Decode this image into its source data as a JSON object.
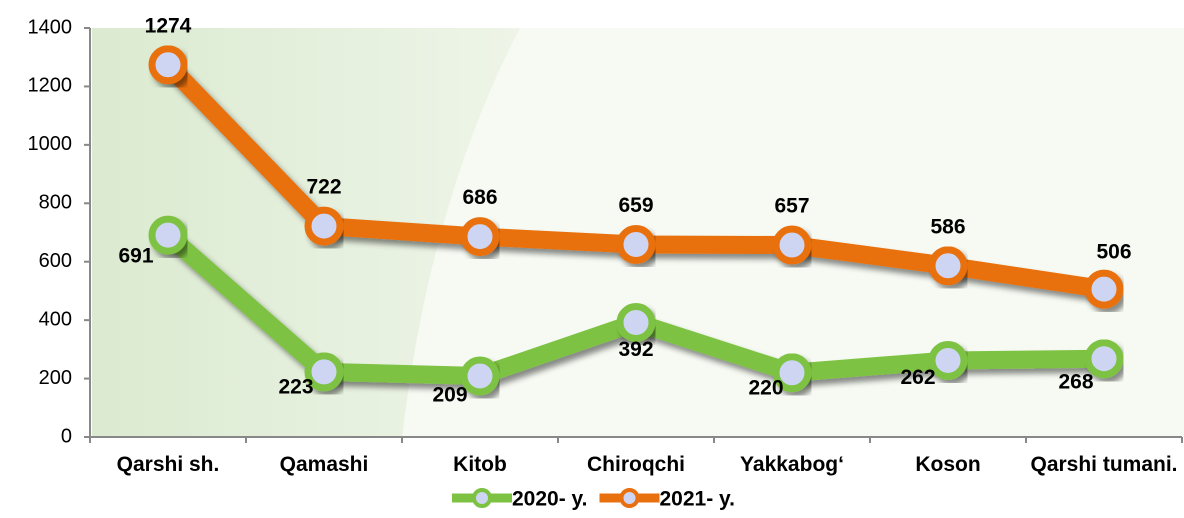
{
  "chart_data": {
    "type": "line",
    "categories": [
      "Qarshi sh.",
      "Qamashi",
      "Kitob",
      "Chiroqchi",
      "Yakkabog‘",
      "Koson",
      "Qarshi tumani."
    ],
    "series": [
      {
        "name": "2020- y.",
        "color": "#7dc242",
        "values": [
          691,
          223,
          209,
          392,
          220,
          262,
          268
        ]
      },
      {
        "name": "2021- y.",
        "color": "#e8700f",
        "values": [
          1274,
          722,
          686,
          659,
          657,
          586,
          506
        ]
      }
    ],
    "ylim": [
      0,
      1400
    ],
    "yticks": [
      0,
      200,
      400,
      600,
      800,
      1000,
      1200,
      1400
    ]
  }
}
